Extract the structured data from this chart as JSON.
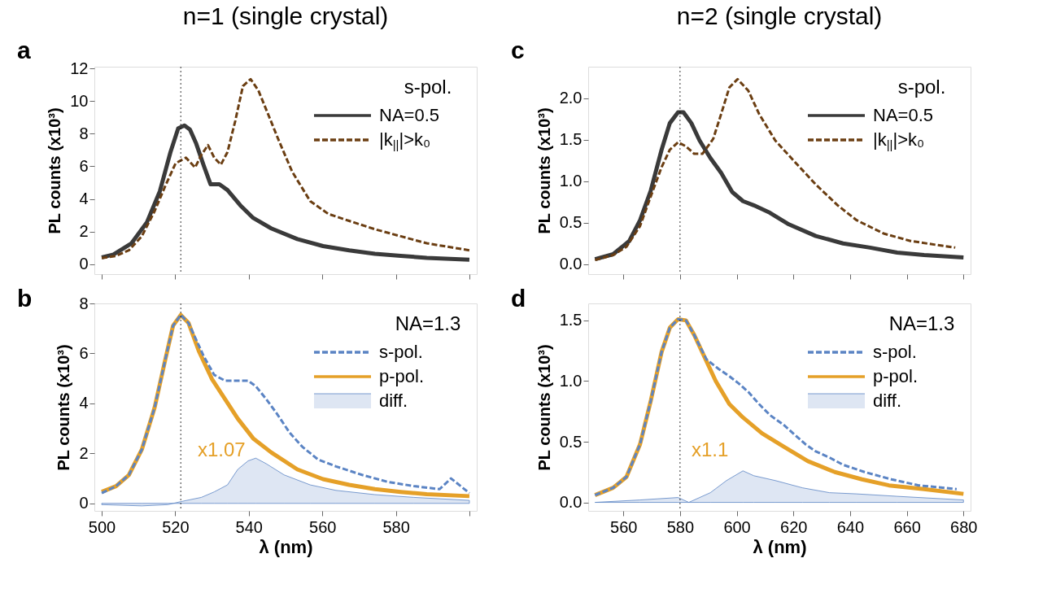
{
  "chart_data": [
    {
      "type": "line",
      "title": "n=1 (single crystal)",
      "ylabel": "PL counts (x10³)",
      "legend_title": "s-pol.",
      "legend": "top right",
      "grid": false,
      "tick_labels": "y",
      "annotations": [
        "a"
      ],
      "xlim": [
        498,
        602
      ],
      "ylim": [
        -0.6,
        12.1
      ],
      "xticks": [
        500,
        520,
        540,
        560,
        580,
        {
          "value": 600,
          "label": null
        }
      ],
      "yticks": [
        0,
        2,
        4,
        6,
        8,
        10,
        12
      ],
      "ref_lines": [
        {
          "axis": "x",
          "value": 521.5,
          "label": null,
          "line_style": "dotted",
          "color": "#000000"
        }
      ],
      "series": [
        {
          "name": "NA=0.5",
          "color": "#3a3a3a",
          "line_style": "solid",
          "x": [
            500,
            503.2,
            508.1,
            512.3,
            515.8,
            518.7,
            520.8,
            522.5,
            524,
            525.7,
            527.8,
            529.6,
            532,
            534.2,
            537.7,
            541.2,
            546.1,
            553.2,
            560.2,
            567.3,
            574.3,
            581.3,
            588.4,
            600
          ],
          "values": [
            0.43,
            0.6,
            1.29,
            2.58,
            4.47,
            6.87,
            8.33,
            8.5,
            8.25,
            7.39,
            6.01,
            4.9,
            4.9,
            4.55,
            3.61,
            2.84,
            2.2,
            1.55,
            1.12,
            0.86,
            0.65,
            0.52,
            0.4,
            0.29
          ]
        },
        {
          "name": "|k$_{||}$|>k₀",
          "color": "#6b3e12",
          "line_style": "dashed",
          "x": [
            500,
            503.9,
            507.4,
            510.9,
            514.4,
            517.3,
            520.1,
            522.9,
            525.4,
            527.1,
            528.9,
            530.6,
            532.4,
            534.2,
            536.3,
            538.4,
            540.5,
            542.6,
            545.4,
            548.2,
            551.8,
            556.7,
            561.6,
            567.3,
            574.3,
            581.3,
            588.4,
            595.4,
            600
          ],
          "values": [
            0.38,
            0.52,
            0.86,
            1.72,
            3.26,
            4.81,
            6.19,
            6.53,
            5.93,
            6.7,
            7.3,
            6.53,
            6.1,
            6.87,
            8.76,
            10.91,
            11.34,
            10.65,
            9.11,
            7.56,
            5.67,
            3.87,
            3.09,
            2.66,
            2.15,
            1.72,
            1.29,
            1.03,
            0.86
          ]
        }
      ]
    },
    {
      "type": "line",
      "xlabel": "λ (nm)",
      "ylabel": "PL counts (x10³)",
      "legend_title": "NA=1.3",
      "legend": "top right",
      "grid": false,
      "annotations": [
        "b",
        "x1.07"
      ],
      "xlim": [
        498,
        602
      ],
      "ylim": [
        -0.3,
        8
      ],
      "xticks": [
        500,
        520,
        540,
        560,
        580,
        {
          "value": 600,
          "label": null
        }
      ],
      "yticks": [
        0,
        2,
        4,
        6,
        8
      ],
      "ref_lines": [
        {
          "axis": "x",
          "value": 521.5,
          "label": null,
          "line_style": "dotted",
          "color": "#000000"
        }
      ],
      "series": [
        {
          "name": "s-pol.",
          "color": "#5b84c4",
          "line_style": "dashed",
          "x": [
            500,
            503.9,
            507.4,
            510.9,
            514.4,
            517.3,
            519.4,
            521.5,
            523.6,
            527.8,
            530.6,
            533.5,
            537,
            539.8,
            541.9,
            544.7,
            547.5,
            551.1,
            554.6,
            558.8,
            563.7,
            570.8,
            577.8,
            584.9,
            591.9,
            595,
            600
          ],
          "values": [
            0.41,
            0.69,
            1.14,
            2.15,
            3.84,
            5.76,
            7.11,
            7.54,
            7.22,
            5.87,
            5.14,
            4.91,
            4.91,
            4.91,
            4.69,
            4.18,
            3.62,
            2.83,
            2.26,
            1.76,
            1.48,
            1.14,
            0.86,
            0.69,
            0.57,
            1.0,
            0.41
          ]
        },
        {
          "name": "p-pol.",
          "color": "#e5a028",
          "line_style": "solid",
          "x": [
            500,
            503.9,
            507.4,
            510.9,
            514.4,
            517.3,
            519.4,
            521.5,
            523.6,
            526.4,
            530,
            533.5,
            537,
            541.2,
            546.1,
            553.2,
            560.2,
            567.3,
            574.3,
            581.3,
            588.4,
            600
          ],
          "values": [
            0.46,
            0.69,
            1.14,
            2.15,
            3.84,
            5.76,
            7.11,
            7.54,
            7.22,
            6.1,
            4.97,
            4.18,
            3.39,
            2.6,
            2.04,
            1.36,
            0.97,
            0.74,
            0.57,
            0.46,
            0.37,
            0.29
          ]
        },
        {
          "name": "diff.",
          "type": "area",
          "color": "#5b84c4",
          "x": [
            500,
            510.9,
            518,
            521.5,
            527.1,
            530.6,
            534.2,
            537,
            539.8,
            541.9,
            544.7,
            549.6,
            556.7,
            563.7,
            574.3,
            584.9,
            600
          ],
          "values": [
            -0.05,
            -0.1,
            -0.05,
            0.07,
            0.24,
            0.46,
            0.74,
            1.36,
            1.7,
            1.81,
            1.59,
            1.14,
            0.74,
            0.52,
            0.35,
            0.24,
            0.12
          ]
        }
      ]
    },
    {
      "type": "line",
      "title": "n=2 (single crystal)",
      "ylabel": "PL counts (x10³)",
      "legend_title": "s-pol.",
      "legend": "top right",
      "grid": false,
      "tick_labels": "y",
      "annotations": [
        "c"
      ],
      "xlim": [
        547.6,
        682.5
      ],
      "ylim": [
        -0.12,
        2.38
      ],
      "xticks": [
        560,
        580,
        600,
        620,
        640,
        660,
        680
      ],
      "yticks": [
        {
          "value": 0,
          "label": "0.0"
        },
        0.5,
        {
          "value": 1,
          "label": "1.0"
        },
        1.5,
        {
          "value": 2,
          "label": "2.0"
        }
      ],
      "ref_lines": [
        {
          "axis": "x",
          "value": 580,
          "label": null,
          "line_style": "dotted",
          "color": "#000000"
        }
      ],
      "series": [
        {
          "name": "NA=0.5",
          "color": "#3a3a3a",
          "line_style": "solid",
          "x": [
            550,
            556.4,
            562.1,
            565.9,
            569.7,
            573.5,
            576.4,
            579.3,
            581.2,
            584,
            586.9,
            590.7,
            594.5,
            598.4,
            602.2,
            606,
            611.7,
            618.4,
            627.9,
            637.5,
            647,
            656.6,
            666.1,
            680
          ],
          "values": [
            0.06,
            0.12,
            0.28,
            0.53,
            0.89,
            1.38,
            1.7,
            1.83,
            1.83,
            1.7,
            1.49,
            1.28,
            1.1,
            0.87,
            0.76,
            0.71,
            0.62,
            0.48,
            0.34,
            0.25,
            0.2,
            0.14,
            0.11,
            0.08
          ]
        },
        {
          "name": "|k$_{||}$|>k₀",
          "color": "#6b3e12",
          "line_style": "dashed",
          "x": [
            550,
            556.4,
            561.1,
            565.9,
            569.7,
            573.5,
            576.4,
            579.3,
            582.1,
            585,
            587.9,
            591.7,
            594.5,
            597.4,
            600.3,
            604.1,
            607.9,
            613.6,
            620.3,
            627.9,
            635.6,
            642.3,
            651.8,
            661.3,
            670.9,
            677.1
          ],
          "values": [
            0.05,
            0.11,
            0.21,
            0.46,
            0.82,
            1.17,
            1.38,
            1.47,
            1.42,
            1.33,
            1.33,
            1.51,
            1.81,
            2.13,
            2.23,
            2.09,
            1.81,
            1.49,
            1.24,
            0.96,
            0.71,
            0.53,
            0.37,
            0.28,
            0.23,
            0.2
          ]
        }
      ]
    },
    {
      "type": "line",
      "xlabel": "λ (nm)",
      "ylabel": "PL counts (x10³)",
      "legend_title": "NA=1.3",
      "legend": "top right",
      "grid": false,
      "annotations": [
        "d",
        "x1.1"
      ],
      "xlim": [
        547.6,
        682.5
      ],
      "ylim": [
        -0.07,
        1.64
      ],
      "xticks": [
        560,
        580,
        600,
        620,
        640,
        660,
        680
      ],
      "yticks": [
        {
          "value": 0,
          "label": "0.0"
        },
        0.5,
        {
          "value": 1,
          "label": "1.0"
        },
        1.5
      ],
      "ref_lines": [
        {
          "axis": "x",
          "value": 580,
          "label": null,
          "line_style": "dotted",
          "color": "#000000"
        }
      ],
      "series": [
        {
          "name": "s-pol.",
          "color": "#5b84c4",
          "line_style": "dashed",
          "x": [
            550,
            556.4,
            561.1,
            565.9,
            569.7,
            573.5,
            576.4,
            579.3,
            582.1,
            585,
            589.3,
            593.6,
            597.4,
            600.7,
            604.1,
            607.9,
            611.7,
            616.5,
            619.4,
            624.2,
            627.9,
            632.7,
            637.5,
            645.1,
            654.6,
            664.2,
            677.6
          ],
          "values": [
            0.06,
            0.12,
            0.21,
            0.48,
            0.84,
            1.24,
            1.44,
            1.51,
            1.5,
            1.38,
            1.18,
            1.1,
            1.04,
            0.98,
            0.91,
            0.81,
            0.72,
            0.64,
            0.58,
            0.48,
            0.42,
            0.37,
            0.31,
            0.25,
            0.19,
            0.14,
            0.11
          ]
        },
        {
          "name": "p-pol.",
          "color": "#e5a028",
          "line_style": "solid",
          "x": [
            550,
            556.4,
            561.1,
            565.9,
            569.7,
            573.5,
            576.4,
            579.3,
            582.1,
            585,
            588.8,
            592.6,
            597.4,
            602.2,
            608.9,
            616.5,
            625.1,
            634.6,
            644.2,
            653.7,
            666.1,
            680
          ],
          "values": [
            0.06,
            0.12,
            0.21,
            0.48,
            0.84,
            1.24,
            1.44,
            1.51,
            1.5,
            1.38,
            1.19,
            1.0,
            0.81,
            0.7,
            0.57,
            0.46,
            0.34,
            0.25,
            0.19,
            0.14,
            0.11,
            0.07
          ]
        },
        {
          "name": "diff.",
          "type": "area",
          "color": "#5b84c4",
          "x": [
            550,
            565.9,
            579.3,
            583.1,
            586.9,
            590.7,
            596.4,
            602.2,
            606,
            613.6,
            623.2,
            632.7,
            642.3,
            656.6,
            680
          ],
          "values": [
            0,
            0.02,
            0.04,
            0,
            0.04,
            0.08,
            0.18,
            0.26,
            0.22,
            0.18,
            0.12,
            0.08,
            0.07,
            0.05,
            0.02
          ]
        }
      ]
    }
  ]
}
